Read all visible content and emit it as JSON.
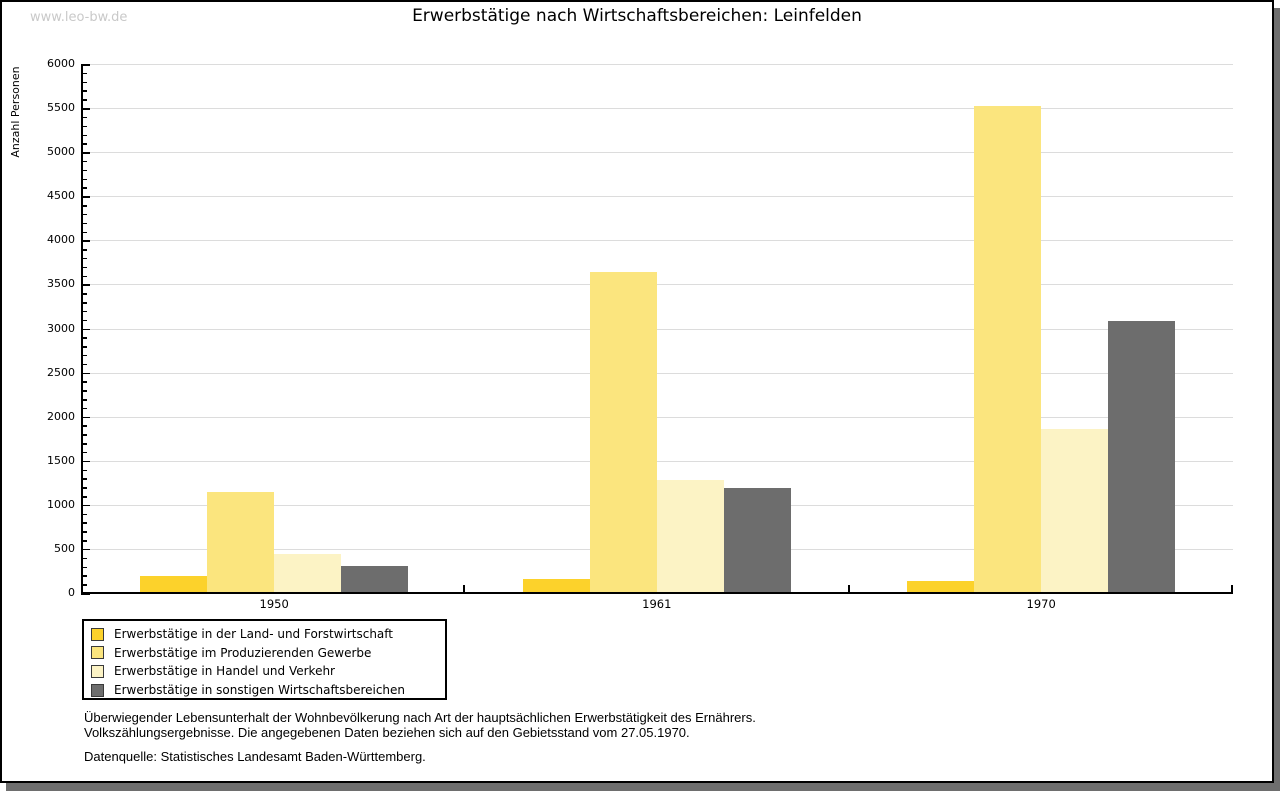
{
  "page": {
    "watermark": "www.leo-bw.de"
  },
  "chart_data": {
    "type": "bar",
    "title": "Erwerbstätige nach Wirtschaftsbereichen: Leinfelden",
    "xlabel": "",
    "ylabel": "Anzahl Personen",
    "ylim": [
      0,
      6000
    ],
    "ytick_step": 500,
    "yminor_step": 100,
    "grid": true,
    "legend_position": "bottom-left",
    "categories": [
      "1950",
      "1961",
      "1970"
    ],
    "series": [
      {
        "name": "Erwerbstätige in der Land- und Forstwirtschaft",
        "color": "#fcd22b",
        "values": [
          190,
          160,
          140
        ]
      },
      {
        "name": "Erwerbstätige im Produzierenden Gewerbe",
        "color": "#fbe57e",
        "values": [
          1140,
          3640,
          5520
        ]
      },
      {
        "name": "Erwerbstätige in Handel und Verkehr",
        "color": "#fcf3c5",
        "values": [
          440,
          1280,
          1860
        ]
      },
      {
        "name": "Erwerbstätige in sonstigen Wirtschaftsbereichen",
        "color": "#6d6d6d",
        "values": [
          310,
          1190,
          3080
        ]
      }
    ]
  },
  "footnotes": {
    "line1": "Überwiegender Lebensunterhalt der Wohnbevölkerung nach Art der hauptsächlichen Erwerbstätigkeit des Ernährers.",
    "line2": "Volkszählungsergebnisse. Die angegebenen Daten beziehen sich auf den Gebietsstand vom 27.05.1970.",
    "source": "Datenquelle: Statistisches Landesamt Baden-Württemberg."
  }
}
